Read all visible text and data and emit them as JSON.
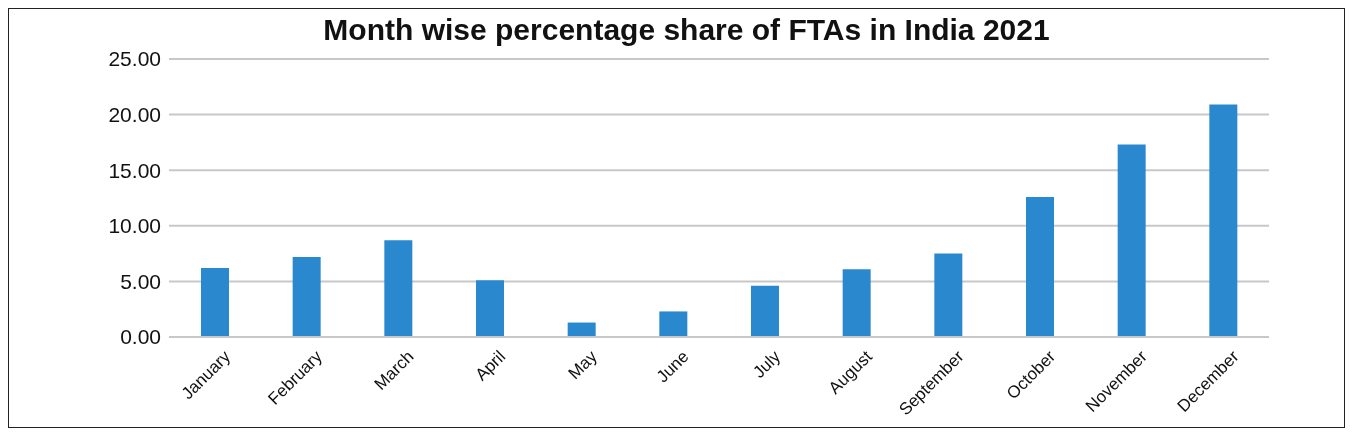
{
  "chart_data": {
    "type": "bar",
    "title": "Month wise percentage share of FTAs in India 2021",
    "categories": [
      "January",
      "February",
      "March",
      "April",
      "May",
      "June",
      "July",
      "August",
      "September",
      "October",
      "November",
      "December"
    ],
    "values": [
      6.2,
      7.2,
      8.7,
      5.1,
      1.3,
      2.3,
      4.6,
      6.1,
      7.5,
      12.6,
      17.3,
      20.9
    ],
    "color": "#2a88cf",
    "ylim": [
      0,
      25
    ],
    "yticks": [
      {
        "value": 0,
        "label": "0.00"
      },
      {
        "value": 5,
        "label": "5.00"
      },
      {
        "value": 10,
        "label": "10.00"
      },
      {
        "value": 15,
        "label": "15.00"
      },
      {
        "value": 20,
        "label": "20.00"
      },
      {
        "value": 25,
        "label": "25.00"
      }
    ],
    "grid": "y"
  }
}
